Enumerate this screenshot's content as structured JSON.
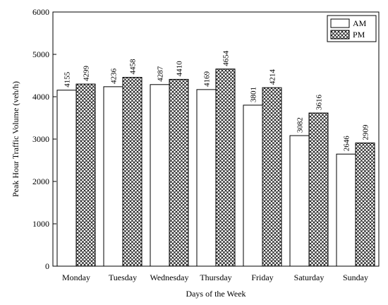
{
  "chart_data": {
    "type": "bar",
    "xlabel": "Days of the Week",
    "ylabel": "Peak Hour Traffic Volume (veh/h)",
    "categories": [
      "Monday",
      "Tuesday",
      "Wednesday",
      "Thursday",
      "Friday",
      "Saturday",
      "Sunday"
    ],
    "series": [
      {
        "name": "AM",
        "values": [
          4155,
          4236,
          4287,
          4169,
          3801,
          3082,
          2646
        ],
        "fill": "#ffffff",
        "pattern": "none"
      },
      {
        "name": "PM",
        "values": [
          4299,
          4458,
          4410,
          4654,
          4214,
          3616,
          2909
        ],
        "fill": "#ffffff",
        "pattern": "crosshatch"
      }
    ],
    "ylim": [
      0,
      6000
    ],
    "yticks": [
      0,
      1000,
      2000,
      3000,
      4000,
      5000,
      6000
    ],
    "grid": false,
    "legend_position": "top-right",
    "data_labels": "rotated-above-bars",
    "colors": {
      "stroke": "#000000",
      "background": "#ffffff",
      "hatch": "#000000"
    }
  }
}
